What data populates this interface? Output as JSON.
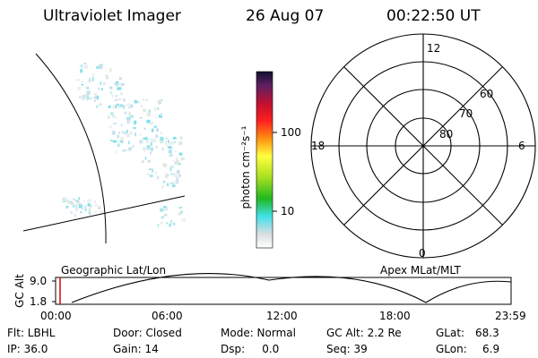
{
  "header": {
    "instrument": "Ultraviolet Imager",
    "date": "26 Aug 07",
    "time": "00:22:50 UT"
  },
  "colorbar": {
    "unit_label": "photon cm⁻²s⁻¹",
    "ticks": [
      "100",
      "10"
    ]
  },
  "polar_plot": {
    "mlt_labels": [
      "12",
      "18",
      "6",
      "0"
    ],
    "lat_labels": [
      "60",
      "70",
      "80"
    ]
  },
  "timeline": {
    "left_title": "Geographic Lat/Lon",
    "right_title": "Apex MLat/MLT",
    "y_axis_label": "GC Alt",
    "y_ticks": [
      "9.0",
      "1.8"
    ],
    "x_ticks": [
      "00:00",
      "06:00",
      "12:00",
      "18:00",
      "23:59"
    ],
    "current_marker_color": "#e00000"
  },
  "status": {
    "flt": "Flt: LBHL",
    "ip": "IP: 36.0",
    "door": "Door: Closed",
    "gain": "Gain: 14",
    "mode": "Mode: Normal",
    "dsp": "Dsp:     0.0",
    "gc_alt": "GC Alt: 2.2 Re",
    "seq": "Seq: 39",
    "glat_label": "GLat:",
    "glat_value": "68.3",
    "glon_label": "GLon:",
    "glon_value": "6.9"
  }
}
